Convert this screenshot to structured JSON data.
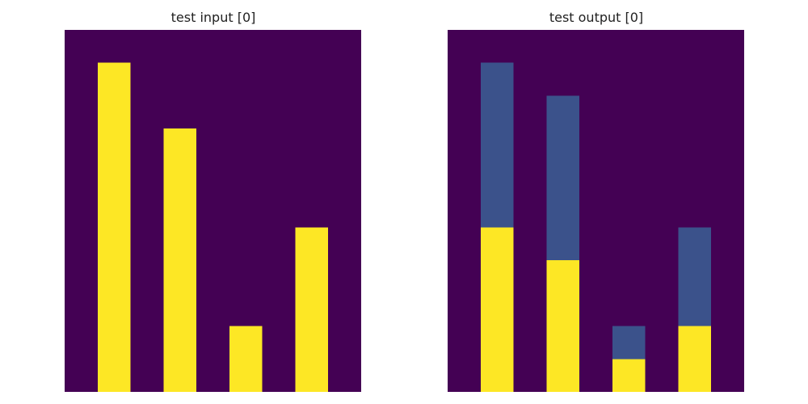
{
  "panels": [
    {
      "title": "test input [0]",
      "grid": [
        [
          0,
          0,
          0,
          0,
          0,
          0,
          0,
          0,
          0
        ],
        [
          0,
          4,
          0,
          0,
          0,
          0,
          0,
          0,
          0
        ],
        [
          0,
          4,
          0,
          0,
          0,
          0,
          0,
          0,
          0
        ],
        [
          0,
          4,
          0,
          4,
          0,
          0,
          0,
          0,
          0
        ],
        [
          0,
          4,
          0,
          4,
          0,
          0,
          0,
          0,
          0
        ],
        [
          0,
          4,
          0,
          4,
          0,
          0,
          0,
          0,
          0
        ],
        [
          0,
          4,
          0,
          4,
          0,
          0,
          0,
          4,
          0
        ],
        [
          0,
          4,
          0,
          4,
          0,
          0,
          0,
          4,
          0
        ],
        [
          0,
          4,
          0,
          4,
          0,
          0,
          0,
          4,
          0
        ],
        [
          0,
          4,
          0,
          4,
          0,
          4,
          0,
          4,
          0
        ],
        [
          0,
          4,
          0,
          4,
          0,
          4,
          0,
          4,
          0
        ]
      ]
    },
    {
      "title": "test output [0]",
      "grid": [
        [
          0,
          0,
          0,
          0,
          0,
          0,
          0,
          0,
          0
        ],
        [
          0,
          2,
          0,
          0,
          0,
          0,
          0,
          0,
          0
        ],
        [
          0,
          2,
          0,
          2,
          0,
          0,
          0,
          0,
          0
        ],
        [
          0,
          2,
          0,
          2,
          0,
          0,
          0,
          0,
          0
        ],
        [
          0,
          2,
          0,
          2,
          0,
          0,
          0,
          0,
          0
        ],
        [
          0,
          2,
          0,
          2,
          0,
          0,
          0,
          0,
          0
        ],
        [
          0,
          4,
          0,
          2,
          0,
          0,
          0,
          2,
          0
        ],
        [
          0,
          4,
          0,
          4,
          0,
          0,
          0,
          2,
          0
        ],
        [
          0,
          4,
          0,
          4,
          0,
          0,
          0,
          2,
          0
        ],
        [
          0,
          4,
          0,
          4,
          0,
          2,
          0,
          4,
          0
        ],
        [
          0,
          4,
          0,
          4,
          0,
          4,
          0,
          4,
          0
        ]
      ]
    }
  ],
  "palette": {
    "0": "#440154",
    "2": "#3b528b",
    "4": "#fde725"
  }
}
